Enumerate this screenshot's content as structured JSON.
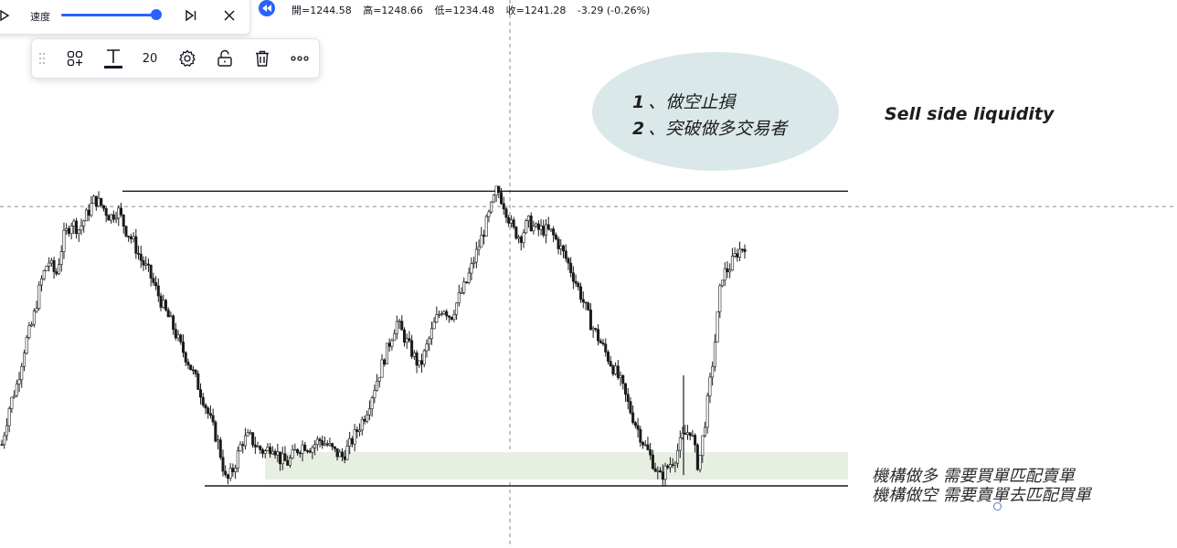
{
  "replay": {
    "speed_label": "速度"
  },
  "ohlc": {
    "open": "開=1244.58",
    "high": "高=1248.66",
    "low": "低=1234.48",
    "close": "收=1241.28",
    "change": "-3.29 (-0.26%)"
  },
  "toolbar": {
    "font_size": "20"
  },
  "annotations": {
    "note_1_num": "1",
    "note_1_text": "、做空止損",
    "note_2_num": "2",
    "note_2_text": "、突破做多交易者",
    "sell_side": "Sell side liquidity",
    "cn_note_1": "機構做多 需要買單匹配賣單",
    "cn_note_2": "機構做空 需要賣單去匹配買單"
  },
  "colors": {
    "accent": "#2962ff",
    "ellipse": "#dbe8ea",
    "zone": "#e7efe2",
    "candle": "#1a1a1a"
  },
  "chart_data": {
    "type": "candlestick",
    "title": "",
    "xlabel": "",
    "ylabel": "",
    "close_path": [
      1232.0,
      1234.5,
      1236.0,
      1238.5,
      1240.0,
      1242.5,
      1244.0,
      1243.0,
      1245.5,
      1246.5,
      1246.0,
      1247.0,
      1248.0,
      1247.5,
      1246.8,
      1247.3,
      1246.0,
      1245.2,
      1244.0,
      1243.2,
      1242.0,
      1240.8,
      1239.8,
      1238.5,
      1237.5,
      1236.3,
      1235.0,
      1233.5,
      1232.0,
      1229.5,
      1230.5,
      1232.2,
      1232.5,
      1231.8,
      1231.5,
      1232.0,
      1231.0,
      1230.8,
      1231.6,
      1232.0,
      1231.8,
      1232.3,
      1232.0,
      1231.5,
      1231.2,
      1232.0,
      1233.0,
      1234.0,
      1235.5,
      1237.0,
      1238.5,
      1240.0,
      1239.0,
      1238.0,
      1237.0,
      1238.5,
      1240.0,
      1241.0,
      1240.3,
      1241.5,
      1242.5,
      1244.0,
      1245.5,
      1247.0,
      1248.7,
      1247.5,
      1246.0,
      1245.5,
      1246.5,
      1246.0,
      1246.0,
      1245.8,
      1245.0,
      1244.0,
      1242.8,
      1241.5,
      1240.0,
      1239.0,
      1238.0,
      1237.0,
      1236.0,
      1234.5,
      1233.2,
      1232.0,
      1231.0,
      1229.8,
      1230.5,
      1231.2,
      1232.5,
      1233.0,
      1230.5,
      1234.0,
      1238.0,
      1243.0,
      1243.5,
      1244.5,
      1245.0
    ],
    "levels": {
      "resistance_high": 1248.5,
      "dashed_crosshair": 1247.5,
      "support_low": 1229.3
    },
    "zone": {
      "from": 1229.7,
      "to": 1231.5
    }
  }
}
